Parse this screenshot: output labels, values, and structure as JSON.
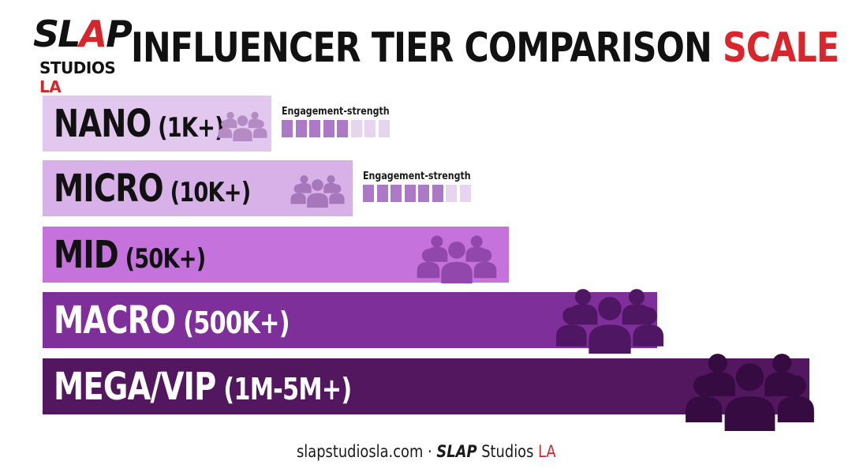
{
  "logo": {
    "slap_a": "SL",
    "slap_b": "A",
    "slap_c": "P",
    "studios": "STUDIOS",
    "la": "LA"
  },
  "header": {
    "title_main": "INFLUENCER TIER COMPARISON",
    "title_accent": "SCALE"
  },
  "colors": {
    "accent_red": "#d7262c",
    "text": "#111111"
  },
  "chart_data": {
    "type": "bar",
    "orientation": "horizontal",
    "title": "INFLUENCER TIER COMPARISON SCALE",
    "categories": [
      "NANO (1K+)",
      "MICRO (10K+)",
      "MID (50K+)",
      "MACRO (500K+)",
      "MEGA/VIP (1M-5M+)"
    ],
    "values": [
      1,
      2,
      3,
      4,
      5
    ],
    "bars": [
      {
        "name": "NANO",
        "followers": "(1K+)",
        "fill": "#e2c8ee",
        "label_color": "#111111",
        "icon_color": "#b48bc4",
        "crowd_icon": "people-group-icon"
      },
      {
        "name": "MICRO",
        "followers": "(10K+)",
        "fill": "#d9b1e9",
        "label_color": "#111111",
        "icon_color": "#a777bc",
        "crowd_icon": "people-group-icon"
      },
      {
        "name": "MID",
        "followers": "(50K+)",
        "fill": "#c572dc",
        "label_color": "#111111",
        "icon_color": "#9247ad",
        "crowd_icon": "people-group-icon"
      },
      {
        "name": "MACRO",
        "followers": "(500K+)",
        "fill": "#7e2f99",
        "label_color": "#ffffff",
        "icon_color": "#4f1664",
        "crowd_icon": "people-group-icon"
      },
      {
        "name": "MEGA/VIP",
        "followers": "(1M-5M+)",
        "fill": "#531760",
        "label_color": "#ffffff",
        "icon_color": "#350b41",
        "crowd_icon": "people-group-icon"
      }
    ],
    "engagement_meters": [
      {
        "tier": "NANO",
        "label": "Engagement-strength",
        "filled": 5,
        "total": 8,
        "filled_color": "#ac79c6",
        "empty_color": "#e7d4ef"
      },
      {
        "tier": "MICRO",
        "label": "Engagement-strength",
        "filled": 6,
        "total": 8,
        "filled_color": "#ac79c6",
        "empty_color": "#e7d4ef"
      }
    ]
  },
  "footer": {
    "site": "slapstudiosla.com",
    "separator": "·",
    "brand_a": "SLAP",
    "brand_b": "Studios",
    "brand_c": "LA"
  }
}
